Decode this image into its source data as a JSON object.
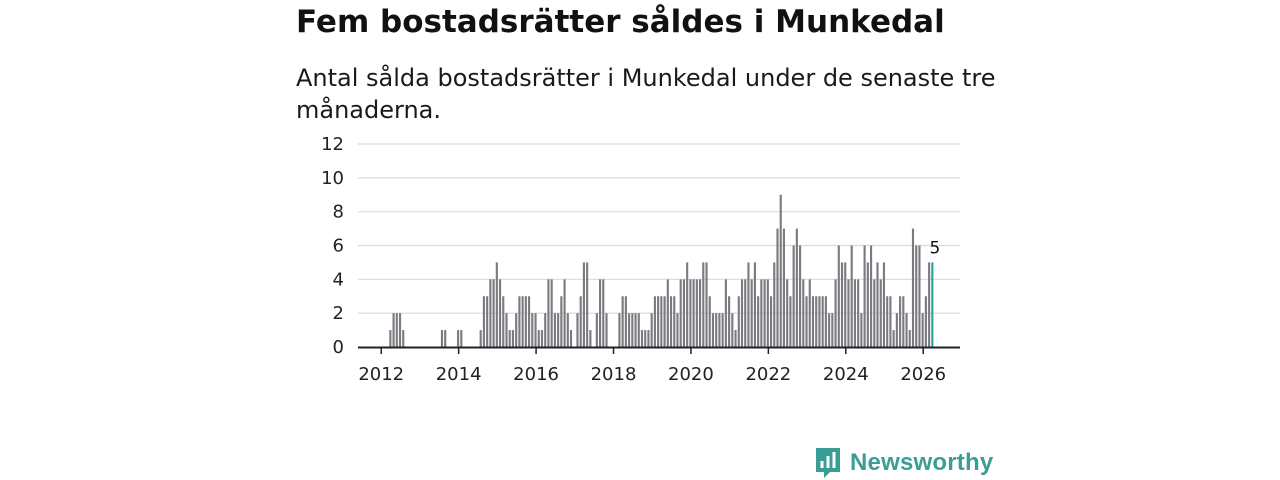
{
  "title": "Fem bostadsrätter såldes i Munkedal",
  "subtitle": "Antal sålda bostadsrätter i Munkedal under de senaste tre månaderna.",
  "brand": {
    "name": "Newsworthy",
    "color": "#3a9e97"
  },
  "colors": {
    "bar": "#7a7a80",
    "highlight": "#2aa39a",
    "grid": "#d9d9d9",
    "axis": "#222222"
  },
  "chart_data": {
    "type": "bar",
    "title": "Fem bostadsrätter såldes i Munkedal",
    "xlabel": "",
    "ylabel": "",
    "ylim": [
      0,
      12
    ],
    "yticks": [
      0,
      2,
      4,
      6,
      8,
      10,
      12
    ],
    "yticklabels": [
      "0",
      "2",
      "4",
      "6",
      "8",
      "10",
      "12"
    ],
    "xlim": [
      2011.4,
      2026.95
    ],
    "xticks": [
      2012,
      2014,
      2016,
      2018,
      2020,
      2022,
      2024,
      2026
    ],
    "xticklabels": [
      "2012",
      "2014",
      "2016",
      "2018",
      "2020",
      "2022",
      "2024",
      "2026"
    ],
    "grid": true,
    "start": {
      "year": 2011,
      "month": 12
    },
    "values": [
      0,
      0,
      0,
      0,
      1,
      2,
      2,
      2,
      1,
      0,
      0,
      0,
      0,
      0,
      0,
      0,
      0,
      0,
      0,
      0,
      1,
      1,
      0,
      0,
      0,
      1,
      1,
      0,
      0,
      0,
      0,
      0,
      1,
      3,
      3,
      4,
      4,
      5,
      4,
      3,
      2,
      1,
      1,
      2,
      3,
      3,
      3,
      3,
      2,
      2,
      1,
      1,
      2,
      4,
      4,
      2,
      2,
      3,
      4,
      2,
      1,
      0,
      2,
      3,
      5,
      5,
      1,
      0,
      2,
      4,
      4,
      2,
      0,
      0,
      0,
      2,
      3,
      3,
      2,
      2,
      2,
      2,
      1,
      1,
      1,
      2,
      3,
      3,
      3,
      3,
      4,
      3,
      3,
      2,
      4,
      4,
      5,
      4,
      4,
      4,
      4,
      5,
      5,
      3,
      2,
      2,
      2,
      2,
      4,
      3,
      2,
      1,
      3,
      4,
      4,
      5,
      4,
      5,
      3,
      4,
      4,
      4,
      3,
      5,
      7,
      9,
      7,
      4,
      3,
      6,
      7,
      6,
      4,
      3,
      4,
      3,
      3,
      3,
      3,
      3,
      2,
      2,
      4,
      6,
      5,
      5,
      4,
      6,
      4,
      4,
      2,
      6,
      5,
      6,
      4,
      5,
      4,
      5,
      3,
      3,
      1,
      2,
      3,
      3,
      2,
      1,
      7,
      6,
      6,
      2,
      3,
      5,
      5
    ],
    "highlight": {
      "index": 172,
      "label": "5"
    }
  }
}
